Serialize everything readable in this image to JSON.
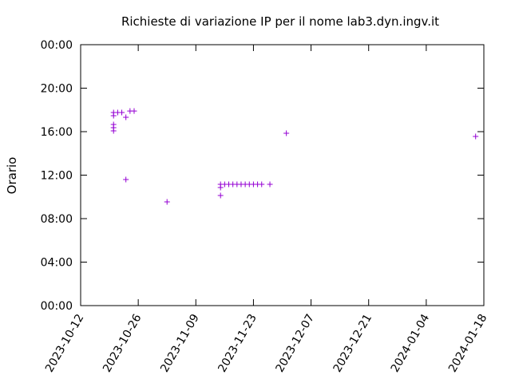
{
  "chart_data": {
    "type": "scatter",
    "title": "Richieste di variazione IP per il nome lab3.dyn.ingv.it",
    "y_label": "Orario",
    "color": "#9400d3",
    "series": [
      {
        "name": null,
        "color": "#9400d3",
        "x": [
          "2023-10-20",
          "2023-10-20",
          "2023-10-20",
          "2023-10-20",
          "2023-10-20",
          "2023-10-21",
          "2023-10-22",
          "2023-10-23",
          "2023-10-23",
          "2023-10-24",
          "2023-10-25",
          "2023-11-02",
          "2023-11-15",
          "2023-11-15",
          "2023-11-15",
          "2023-11-16",
          "2023-11-17",
          "2023-11-18",
          "2023-11-19",
          "2023-11-20",
          "2023-11-21",
          "2023-11-22",
          "2023-11-23",
          "2023-11-24",
          "2023-11-25",
          "2023-11-27",
          "2023-12-01",
          "2024-01-16"
        ],
        "values": [
          17.76,
          17.47,
          16.66,
          16.37,
          16.07,
          17.76,
          17.76,
          17.32,
          11.6,
          17.9,
          17.9,
          9.54,
          11.16,
          10.86,
          10.13,
          11.16,
          11.16,
          11.16,
          11.16,
          11.16,
          11.16,
          11.16,
          11.16,
          11.16,
          11.16,
          11.16,
          15.85,
          15.56
        ]
      }
    ],
    "xlim": [
      "2023-10-12",
      "2024-01-18"
    ],
    "xticks": [
      "2023-10-12",
      "2023-10-26",
      "2023-11-09",
      "2023-11-23",
      "2023-12-07",
      "2023-12-21",
      "2024-01-04",
      "2024-01-18"
    ],
    "ylim": [
      0,
      24
    ],
    "yticks": [
      {
        "value": 0,
        "label": "00:00"
      },
      {
        "value": 4,
        "label": "04:00"
      },
      {
        "value": 8,
        "label": "08:00"
      },
      {
        "value": 12,
        "label": "12:00"
      },
      {
        "value": 16,
        "label": "16:00"
      },
      {
        "value": 20,
        "label": "20:00"
      },
      {
        "value": 24,
        "label": "00:00"
      }
    ],
    "grid": false
  }
}
